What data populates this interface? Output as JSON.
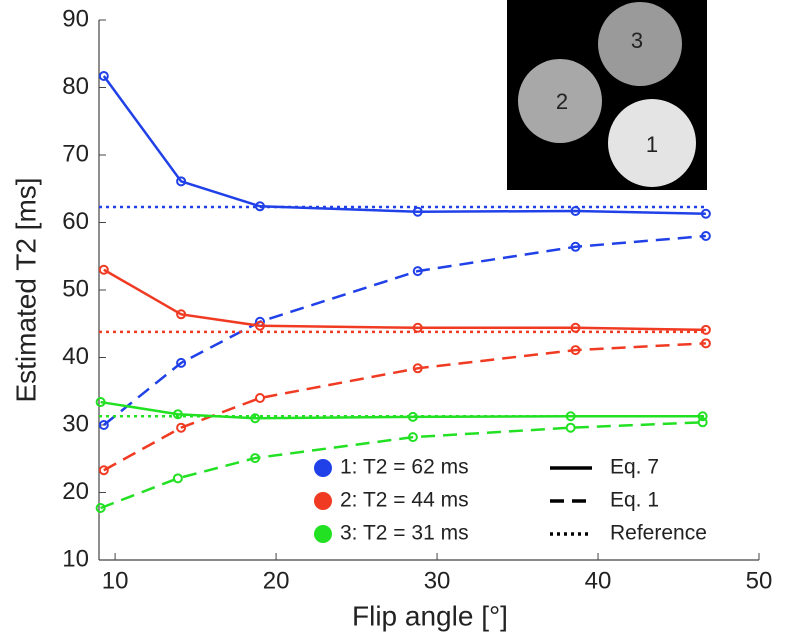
{
  "chart_data": {
    "type": "line",
    "xlabel": "Flip angle [°]",
    "ylabel": "Estimated T2 [ms]",
    "xlim": [
      9,
      50
    ],
    "xticks": [
      10,
      20,
      30,
      40,
      50
    ],
    "ylim": [
      10,
      90
    ],
    "yticks": [
      10,
      20,
      30,
      40,
      50,
      60,
      70,
      80,
      90
    ],
    "styles": [
      {
        "name": "Eq. 7",
        "dash": "solid"
      },
      {
        "name": "Eq. 1",
        "dash": "dashed"
      },
      {
        "name": "Reference",
        "dash": "dotted"
      }
    ],
    "groups": [
      {
        "name": "1: T2 = 62 ms",
        "color": "#2040e8",
        "reference": 62.3,
        "eq7": {
          "x": [
            9.3,
            14.1,
            19.0,
            28.8,
            38.6,
            46.7
          ],
          "values": [
            81.7,
            66.1,
            62.4,
            61.6,
            61.7,
            61.3
          ]
        },
        "eq1": {
          "x": [
            9.3,
            14.1,
            19.0,
            28.8,
            38.6,
            46.7
          ],
          "values": [
            30.0,
            39.2,
            45.3,
            52.8,
            56.4,
            58.0
          ]
        }
      },
      {
        "name": "2: T2 = 44 ms",
        "color": "#f03a22",
        "reference": 43.8,
        "eq7": {
          "x": [
            9.3,
            14.1,
            19.0,
            28.8,
            38.6,
            46.7
          ],
          "values": [
            53.0,
            46.4,
            44.7,
            44.4,
            44.4,
            44.1
          ]
        },
        "eq1": {
          "x": [
            9.3,
            14.1,
            19.0,
            28.8,
            38.6,
            46.7
          ],
          "values": [
            23.3,
            29.6,
            34.0,
            38.4,
            41.1,
            42.1
          ]
        }
      },
      {
        "name": "3: T2 = 31 ms",
        "color": "#22e022",
        "reference": 31.3,
        "eq7": {
          "x": [
            9.1,
            13.9,
            18.7,
            28.5,
            38.3,
            46.5
          ],
          "values": [
            33.4,
            31.6,
            31.0,
            31.2,
            31.3,
            31.3
          ]
        },
        "eq1": {
          "x": [
            9.1,
            13.9,
            18.7,
            28.5,
            38.3,
            46.5
          ],
          "values": [
            17.7,
            22.1,
            25.1,
            28.2,
            29.6,
            30.4
          ]
        }
      }
    ],
    "inset_labels": [
      "1",
      "2",
      "3"
    ]
  }
}
